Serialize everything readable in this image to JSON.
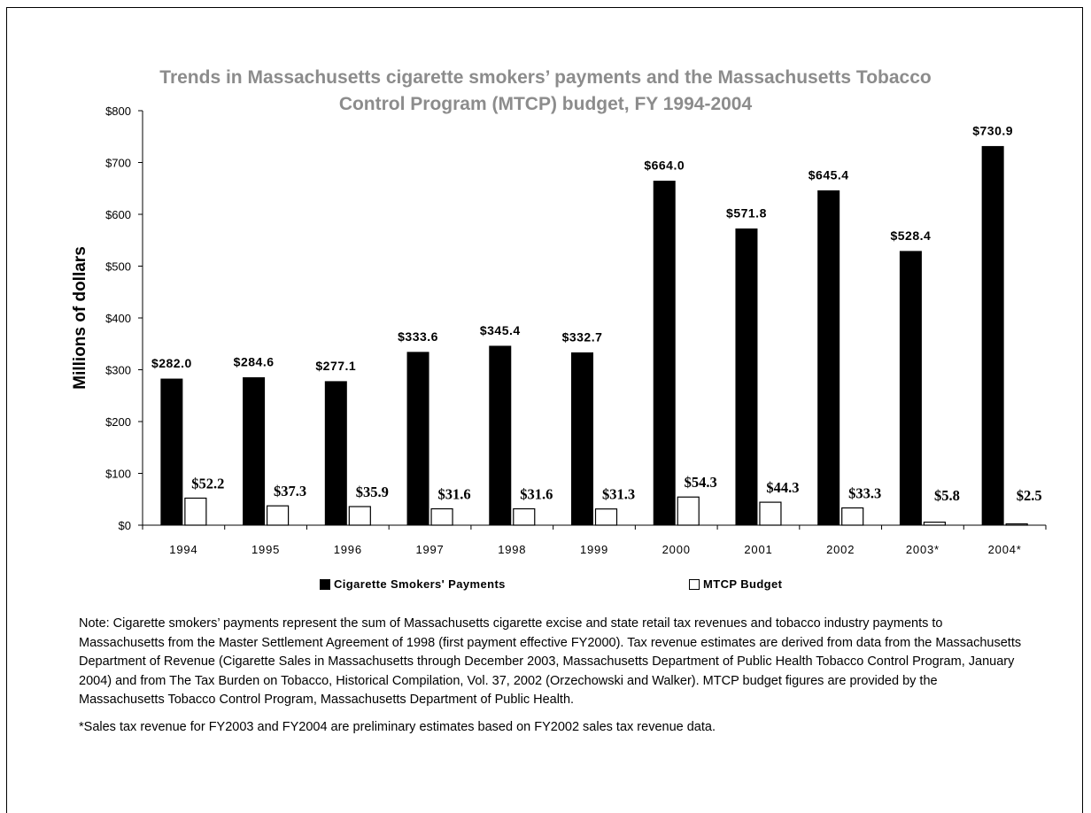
{
  "chart_data": {
    "type": "bar",
    "title": "Trends in Massachusetts cigarette smokers’ payments and the Massachusetts Tobacco Control Program (MTCP) budget, FY 1994-2004",
    "title_lines": [
      "Trends in Massachusetts cigarette smokers’ payments and the Massachusetts Tobacco",
      "Control Program (MTCP) budget, FY 1994-2004"
    ],
    "title_color": "#8c8c8c",
    "xlabel": "",
    "ylabel": "Millions of dollars",
    "ylim": [
      0,
      800
    ],
    "yticks": [
      0,
      100,
      200,
      300,
      400,
      500,
      600,
      700,
      800
    ],
    "ytick_labels": [
      "$0",
      "$100",
      "$200",
      "$300",
      "$400",
      "$500",
      "$600",
      "$700",
      "$800"
    ],
    "categories": [
      "1994",
      "1995",
      "1996",
      "1997",
      "1998",
      "1999",
      "2000",
      "2001",
      "2002",
      "2003*",
      "2004*"
    ],
    "series": [
      {
        "name": "Cigarette Smokers' Payments",
        "color": "#000000",
        "values": [
          282.0,
          284.6,
          277.1,
          333.6,
          345.4,
          332.7,
          664.0,
          571.8,
          645.4,
          528.4,
          730.9
        ],
        "labels": [
          "$282.0",
          "$284.6",
          "$277.1",
          "$333.6",
          "$345.4",
          "$332.7",
          "$664.0",
          "$571.8",
          "$645.4",
          "$528.4",
          "$730.9"
        ]
      },
      {
        "name": "MTCP Budget",
        "color": "#ffffff",
        "values": [
          52.2,
          37.3,
          35.9,
          31.6,
          31.6,
          31.3,
          54.3,
          44.3,
          33.3,
          5.8,
          2.5
        ],
        "labels": [
          "$52.2",
          "$37.3",
          "$35.9",
          "$31.6",
          "$31.6",
          "$31.3",
          "$54.3",
          "$44.3",
          "$33.3",
          "$5.8",
          "$2.5"
        ]
      }
    ],
    "grid": false,
    "legend": "bottom"
  },
  "notes": {
    "note": "Note:  Cigarette smokers’ payments represent the sum of Massachusetts cigarette excise and state retail tax revenues and tobacco industry payments to Massachusetts from the Master Settlement Agreement of 1998 (first payment effective FY2000).  Tax revenue estimates are derived from data from the Massachusetts Department of Revenue (Cigarette Sales in Massachusetts through December 2003, Massachusetts Department of Public Health Tobacco Control Program, January 2004) and from The Tax Burden on Tobacco, Historical Compilation, Vol. 37, 2002 (Orzechowski and Walker).  MTCP budget figures are provided by the Massachusetts Tobacco Control Program, Massachusetts Department of Public Health.",
    "footnote": "*Sales tax revenue for FY2003 and FY2004 are preliminary estimates based on FY2002 sales tax revenue data."
  }
}
